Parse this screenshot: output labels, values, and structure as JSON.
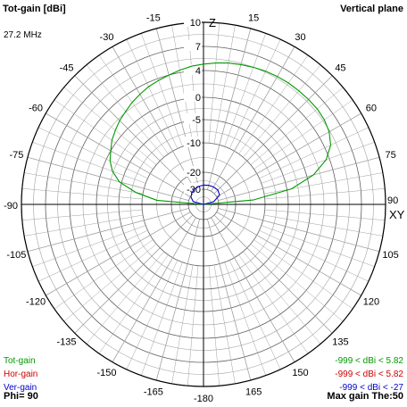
{
  "header": {
    "title": "Tot-gain [dBi]",
    "plane": "Vertical plane",
    "frequency": "27.2 MHz"
  },
  "footer": {
    "phi": "Phi= 90",
    "max_gain": "Max gain The:50"
  },
  "legend": [
    {
      "label": "Tot-gain",
      "range": "-999 < dBi < 5.82",
      "color": "#009900"
    },
    {
      "label": "Hor-gain",
      "range": "-999 < dBi < 5.82",
      "color": "#cc0000"
    },
    {
      "label": "Ver-gain",
      "range": "-999 < dBi < -27",
      "color": "#0000cc"
    }
  ],
  "colors": {
    "tot": "#009900",
    "hor": "#cc0000",
    "ver": "#0000cc",
    "grid": "#a0a0a0",
    "axes": "#000000"
  },
  "chart_data": {
    "type": "polar",
    "title": "Tot-gain [dBi]",
    "subtitle": "Vertical plane",
    "angle_labels": [
      "Z",
      "15",
      "30",
      "45",
      "60",
      "75",
      "90",
      "105",
      "120",
      "135",
      "150",
      "165",
      "-180",
      "-165",
      "-150",
      "-135",
      "-120",
      "-105",
      "-90",
      "-75",
      "-60",
      "-45",
      "-30",
      "-15"
    ],
    "axis_labels": {
      "top": "Z",
      "right": "XY"
    },
    "radial_scale": "dBi (logarithmic compressed)",
    "radial_ticks": [
      10,
      7,
      4,
      0,
      -5,
      -10,
      -20,
      -30
    ],
    "rlim": [
      -40,
      10
    ],
    "series": [
      {
        "name": "Tot-gain",
        "theta_deg": [
          -90,
          -85,
          -80,
          -75,
          -70,
          -65,
          -60,
          -55,
          -50,
          -45,
          -40,
          -35,
          -30,
          -25,
          -20,
          -15,
          -10,
          -5,
          0,
          5,
          10,
          15,
          20,
          25,
          30,
          35,
          40,
          45,
          50,
          55,
          60,
          65,
          70,
          75,
          80,
          85,
          90
        ],
        "gain_dbi": [
          -40,
          -15,
          -8.5,
          -4.5,
          -2.3,
          -0.9,
          0.0,
          0.7,
          1.2,
          1.7,
          2.1,
          2.6,
          3.0,
          3.4,
          3.7,
          4.0,
          4.3,
          4.6,
          4.8,
          5.0,
          5.2,
          5.35,
          5.5,
          5.62,
          5.72,
          5.78,
          5.8,
          5.82,
          5.82,
          5.7,
          5.4,
          4.8,
          3.5,
          1.0,
          -4.0,
          -14.0,
          -40
        ]
      },
      {
        "name": "Ver-gain",
        "theta_deg": [
          -90,
          -75,
          -60,
          -45,
          -30,
          -15,
          0,
          15,
          30,
          45,
          60,
          75,
          90
        ],
        "gain_dbi": [
          -40,
          -33,
          -30.5,
          -29.2,
          -28.5,
          -28.0,
          -27.6,
          -27.3,
          -27.1,
          -27.0,
          -28.0,
          -33,
          -40
        ]
      }
    ]
  }
}
